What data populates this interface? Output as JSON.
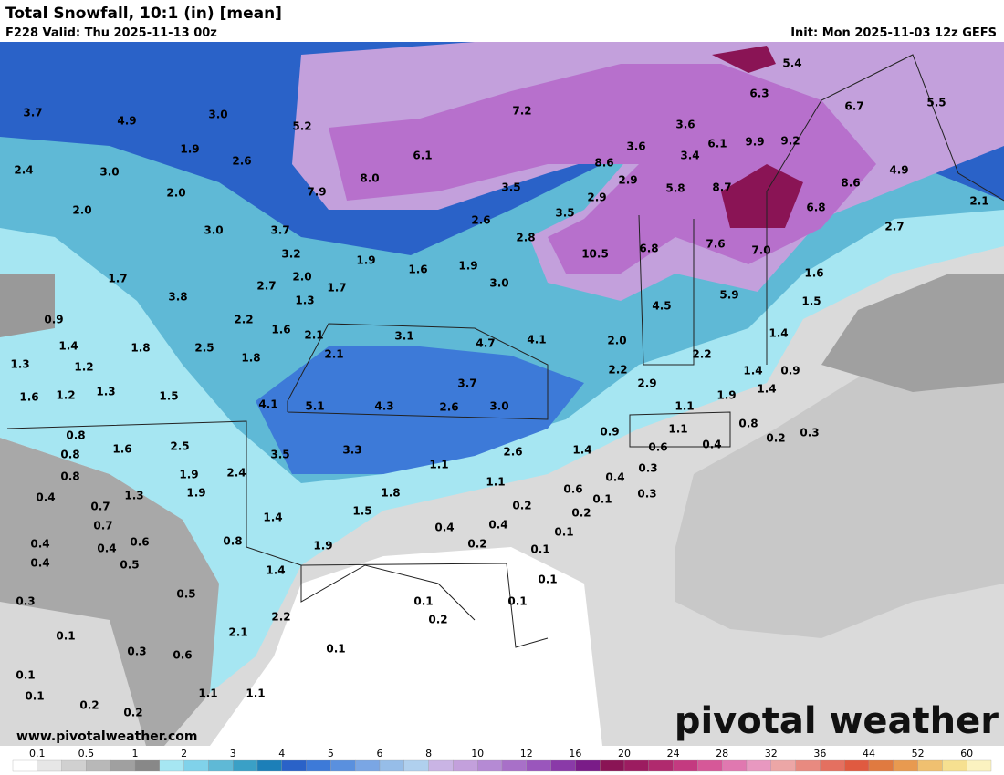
{
  "header": {
    "title": "Total Snowfall, 10:1 (in) [mean]",
    "valid": "F228 Valid: Thu 2025-11-13 00z",
    "init": "Init: Mon 2025-11-03 12z GEFS"
  },
  "map": {
    "labels": [
      "3.7",
      "4.9",
      "3.0",
      "5.2",
      "7.2",
      "5.4",
      "6.3",
      "6.7",
      "5.5",
      "1.9",
      "2.6",
      "3.0",
      "2.4",
      "6.1",
      "8.0",
      "8.6",
      "3.6",
      "3.6",
      "6.1",
      "9.9",
      "9.2",
      "3.4",
      "2.9",
      "5.8",
      "8.7",
      "8.6",
      "4.9",
      "2.1",
      "2.0",
      "7.9",
      "3.5",
      "2.9",
      "2.0",
      "3.5",
      "6.8",
      "3.0",
      "3.7",
      "2.6",
      "2.8",
      "7.6",
      "10.5",
      "6.8",
      "7.0",
      "2.7",
      "3.2",
      "1.9",
      "1.6",
      "1.9",
      "1.6",
      "1.7",
      "2.0",
      "2.7",
      "1.7",
      "3.0",
      "3.8",
      "1.3",
      "5.9",
      "4.5",
      "1.5",
      "0.9",
      "2.2",
      "1.6",
      "2.1",
      "3.1",
      "4.7",
      "4.1",
      "2.0",
      "1.4",
      "1.4",
      "1.8",
      "2.5",
      "1.8",
      "2.1",
      "2.2",
      "1.3",
      "1.2",
      "2.2",
      "1.4",
      "0.9",
      "1.3",
      "1.5",
      "3.7",
      "2.9",
      "1.9",
      "1.6",
      "1.2",
      "4.1",
      "5.1",
      "4.3",
      "2.6",
      "3.0",
      "1.4",
      "1.1",
      "0.9",
      "1.1",
      "0.8",
      "0.8",
      "0.3",
      "0.2",
      "1.6",
      "2.5",
      "3.5",
      "3.3",
      "2.6",
      "1.4",
      "0.6",
      "0.4",
      "0.8",
      "1.1",
      "0.3",
      "1.9",
      "2.4",
      "0.8",
      "0.4",
      "1.1",
      "0.6",
      "0.3",
      "1.9",
      "1.8",
      "0.1",
      "0.4",
      "1.3",
      "0.7",
      "0.2",
      "0.2",
      "1.5",
      "1.4",
      "0.7",
      "0.4",
      "0.4",
      "0.1",
      "0.4",
      "0.4",
      "0.6",
      "0.8",
      "1.9",
      "0.2",
      "0.1",
      "0.4",
      "0.5",
      "1.4",
      "0.1",
      "0.1",
      "0.3",
      "0.5",
      "0.1",
      "0.2",
      "2.2",
      "0.1",
      "2.1",
      "0.1",
      "0.3",
      "0.6",
      "0.1",
      "0.1",
      "1.1",
      "1.1",
      "0.2",
      "0.2"
    ]
  },
  "legend": {
    "ticks": [
      "0.1",
      "0.5",
      "1",
      "2",
      "3",
      "4",
      "5",
      "6",
      "8",
      "10",
      "12",
      "16",
      "20",
      "24",
      "28",
      "32",
      "36",
      "44",
      "52",
      "60"
    ]
  },
  "footer": {
    "url": "www.pivotalweather.com",
    "brand": "pivotal weather"
  }
}
